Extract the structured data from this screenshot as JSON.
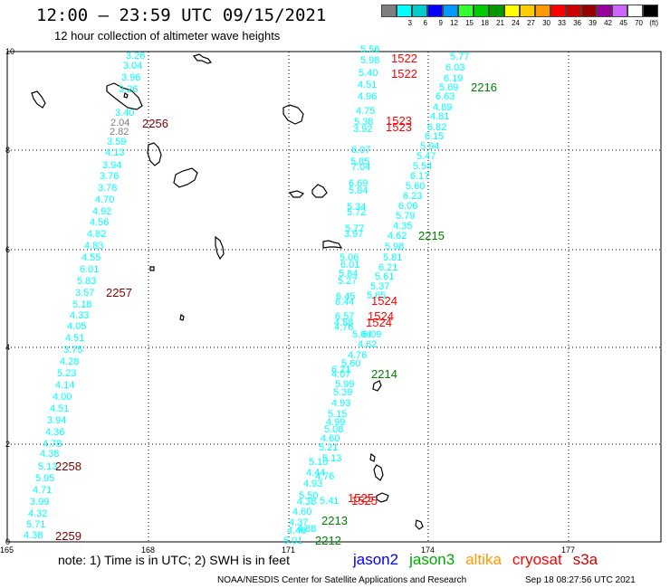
{
  "header": {
    "title": "12:00 – 23:59 UTC 09/15/2021",
    "subtitle": "12 hour collection of altimeter wave heights"
  },
  "legend": {
    "unit": "(ft)",
    "colors": [
      "#7f7f7f",
      "#00ffff",
      "#00cccc",
      "#0000ff",
      "#0099ff",
      "#33ff33",
      "#00cc00",
      "#009900",
      "#ffff00",
      "#ffcc00",
      "#ff9900",
      "#ff0000",
      "#cc0000",
      "#990000",
      "#990099",
      "#cc66ff",
      "#ffffff",
      "#000000"
    ],
    "labels": [
      "",
      "3",
      "6",
      "9",
      "12",
      "15",
      "18",
      "21",
      "24",
      "27",
      "30",
      "33",
      "36",
      "39",
      "42",
      "45",
      "70",
      ""
    ]
  },
  "axes": {
    "y_ticks": [
      "0",
      "2",
      "4",
      "6",
      "8",
      "10"
    ],
    "x_ticks": [
      "165",
      "168",
      "171",
      "174",
      "177"
    ]
  },
  "observations": [
    {
      "t": "3.26",
      "c": "#00ffff"
    },
    {
      "t": "3.04",
      "c": "#00ffff"
    },
    {
      "t": "3.96",
      "c": "#00ffff"
    },
    {
      "t": "3.26",
      "c": "#00ffff"
    },
    {
      "t": "2.04",
      "c": "#7f7f7f"
    },
    {
      "t": "2.82",
      "c": "#7f7f7f"
    },
    {
      "t": "3.40",
      "c": "#00ffff"
    },
    {
      "t": "3.59",
      "c": "#00ffff"
    },
    {
      "t": "4.13",
      "c": "#00ffff"
    },
    {
      "t": "3.94",
      "c": "#00ffff"
    },
    {
      "t": "3.76",
      "c": "#00ffff"
    },
    {
      "t": "3.78",
      "c": "#00ffff"
    },
    {
      "t": "4.70",
      "c": "#00ffff"
    },
    {
      "t": "4.92",
      "c": "#00ffff"
    },
    {
      "t": "4.56",
      "c": "#00ffff"
    },
    {
      "t": "4.82",
      "c": "#00ffff"
    },
    {
      "t": "4.83",
      "c": "#00ffff"
    },
    {
      "t": "4.55",
      "c": "#00ffff"
    },
    {
      "t": "6.01",
      "c": "#00ffff"
    },
    {
      "t": "5.83",
      "c": "#00ffff"
    },
    {
      "t": "3.57",
      "c": "#00ffff"
    },
    {
      "t": "5.18",
      "c": "#00ffff"
    },
    {
      "t": "4.33",
      "c": "#00ffff"
    },
    {
      "t": "4.05",
      "c": "#00ffff"
    },
    {
      "t": "4.51",
      "c": "#00ffff"
    },
    {
      "t": "3.75",
      "c": "#00ffff"
    },
    {
      "t": "4.28",
      "c": "#00ffff"
    },
    {
      "t": "5.23",
      "c": "#00ffff"
    },
    {
      "t": "4.14",
      "c": "#00ffff"
    },
    {
      "t": "4.00",
      "c": "#00ffff"
    },
    {
      "t": "4.51",
      "c": "#00ffff"
    },
    {
      "t": "3.94",
      "c": "#00ffff"
    },
    {
      "t": "4.36",
      "c": "#00ffff"
    },
    {
      "t": "4.78",
      "c": "#00ffff"
    },
    {
      "t": "4.38",
      "c": "#00ffff"
    },
    {
      "t": "5.13",
      "c": "#00ffff"
    },
    {
      "t": "5.95",
      "c": "#00ffff"
    },
    {
      "t": "4.71",
      "c": "#00ffff"
    },
    {
      "t": "3.99",
      "c": "#00ffff"
    },
    {
      "t": "4.32",
      "c": "#00ffff"
    },
    {
      "t": "5.71",
      "c": "#00ffff"
    },
    {
      "t": "4.38",
      "c": "#00ffff"
    },
    {
      "t": "5.56",
      "c": "#00ffff"
    },
    {
      "t": "5.98",
      "c": "#00ffff"
    },
    {
      "t": "5.40",
      "c": "#00ffff"
    },
    {
      "t": "4.51",
      "c": "#00ffff"
    },
    {
      "t": "4.96",
      "c": "#00ffff"
    },
    {
      "t": "4.75",
      "c": "#00ffff"
    },
    {
      "t": "5.38",
      "c": "#00ffff"
    },
    {
      "t": "3.92",
      "c": "#00ffff"
    },
    {
      "t": "6.07",
      "c": "#00ffff"
    },
    {
      "t": "5.85",
      "c": "#00ffff"
    },
    {
      "t": "7.04",
      "c": "#00ffff"
    },
    {
      "t": "6.69",
      "c": "#00ffff"
    },
    {
      "t": "5.84",
      "c": "#00ffff"
    },
    {
      "t": "5.34",
      "c": "#00ffff"
    },
    {
      "t": "5.72",
      "c": "#00ffff"
    },
    {
      "t": "5.77",
      "c": "#00ffff"
    },
    {
      "t": "3.97",
      "c": "#00ffff"
    },
    {
      "t": "5.06",
      "c": "#00ffff"
    },
    {
      "t": "6.01",
      "c": "#00ffff"
    },
    {
      "t": "5.84",
      "c": "#00ffff"
    },
    {
      "t": "5.27",
      "c": "#00ffff"
    },
    {
      "t": "6.45",
      "c": "#00ffff"
    },
    {
      "t": "6.44",
      "c": "#00ffff"
    },
    {
      "t": "6.57",
      "c": "#00ffff"
    },
    {
      "t": "4.58",
      "c": "#00ffff"
    },
    {
      "t": "4.76",
      "c": "#00ffff"
    },
    {
      "t": "5.77",
      "c": "#00ffff"
    },
    {
      "t": "6.03",
      "c": "#00ffff"
    },
    {
      "t": "6.19",
      "c": "#00ffff"
    },
    {
      "t": "5.69",
      "c": "#00ffff"
    },
    {
      "t": "6.63",
      "c": "#00ffff"
    },
    {
      "t": "4.89",
      "c": "#00ffff"
    },
    {
      "t": "4.81",
      "c": "#00ffff"
    },
    {
      "t": "6.82",
      "c": "#00ffff"
    },
    {
      "t": "6.15",
      "c": "#00ffff"
    },
    {
      "t": "5.94",
      "c": "#00ffff"
    },
    {
      "t": "5.47",
      "c": "#00ffff"
    },
    {
      "t": "5.54",
      "c": "#00ffff"
    },
    {
      "t": "6.17",
      "c": "#00ffff"
    },
    {
      "t": "5.60",
      "c": "#00ffff"
    },
    {
      "t": "6.23",
      "c": "#00ffff"
    },
    {
      "t": "6.06",
      "c": "#00ffff"
    },
    {
      "t": "5.79",
      "c": "#00ffff"
    },
    {
      "t": "4.35",
      "c": "#00ffff"
    },
    {
      "t": "4.62",
      "c": "#00ffff"
    },
    {
      "t": "5.98",
      "c": "#00ffff"
    },
    {
      "t": "5.81",
      "c": "#00ffff"
    },
    {
      "t": "6.21",
      "c": "#00ffff"
    },
    {
      "t": "5.61",
      "c": "#00ffff"
    },
    {
      "t": "5.37",
      "c": "#00ffff"
    },
    {
      "t": "5.65",
      "c": "#00ffff"
    },
    {
      "t": "6.09",
      "c": "#00ffff"
    },
    {
      "t": "4.62",
      "c": "#00ffff"
    },
    {
      "t": "5.64",
      "c": "#00ffff"
    },
    {
      "t": "4.76",
      "c": "#00ffff"
    },
    {
      "t": "5.60",
      "c": "#00ffff"
    },
    {
      "t": "6.21",
      "c": "#00ffff"
    },
    {
      "t": "4.07",
      "c": "#00ffff"
    },
    {
      "t": "5.99",
      "c": "#00ffff"
    },
    {
      "t": "5.39",
      "c": "#00ffff"
    },
    {
      "t": "4.93",
      "c": "#00ffff"
    },
    {
      "t": "5.15",
      "c": "#00ffff"
    },
    {
      "t": "4.99",
      "c": "#00ffff"
    },
    {
      "t": "5.08",
      "c": "#00ffff"
    },
    {
      "t": "4.60",
      "c": "#00ffff"
    },
    {
      "t": "5.21",
      "c": "#00ffff"
    },
    {
      "t": "5.13",
      "c": "#00ffff"
    },
    {
      "t": "5.10",
      "c": "#00ffff"
    },
    {
      "t": "4.44",
      "c": "#00ffff"
    },
    {
      "t": "4.76",
      "c": "#00ffff"
    },
    {
      "t": "4.93",
      "c": "#00ffff"
    },
    {
      "t": "5.50",
      "c": "#00ffff"
    },
    {
      "t": "4.38",
      "c": "#00ffff"
    },
    {
      "t": "5.41",
      "c": "#00ffff"
    },
    {
      "t": "4.60",
      "c": "#00ffff"
    },
    {
      "t": "4.37",
      "c": "#00ffff"
    },
    {
      "t": "4.48",
      "c": "#00ffff"
    },
    {
      "t": "4.88",
      "c": "#00ffff"
    },
    {
      "t": "5.01",
      "c": "#00ffff"
    }
  ],
  "passes": [
    {
      "t": "2256",
      "c": "#800000"
    },
    {
      "t": "2257",
      "c": "#800000"
    },
    {
      "t": "2258",
      "c": "#800000"
    },
    {
      "t": "2259",
      "c": "#800000"
    },
    {
      "t": "1522",
      "c": "#ff0000"
    },
    {
      "t": "1522",
      "c": "#ff0000"
    },
    {
      "t": "1523",
      "c": "#ff0000"
    },
    {
      "t": "1523",
      "c": "#ff0000"
    },
    {
      "t": "1524",
      "c": "#ff0000"
    },
    {
      "t": "1524",
      "c": "#ff0000"
    },
    {
      "t": "1524",
      "c": "#ff0000"
    },
    {
      "t": "1525",
      "c": "#ff0000"
    },
    {
      "t": "1525",
      "c": "#ff0000"
    },
    {
      "t": "2216",
      "c": "#008000"
    },
    {
      "t": "2215",
      "c": "#008000"
    },
    {
      "t": "2214",
      "c": "#008000"
    },
    {
      "t": "2213",
      "c": "#008000"
    },
    {
      "t": "2212",
      "c": "#008000"
    }
  ],
  "notes": {
    "text": "note: 1) Time is in UTC; 2) SWH is in feet",
    "satellites": [
      {
        "name": "jason2",
        "color": "#0000ff"
      },
      {
        "name": "jason3",
        "color": "#00aa00"
      },
      {
        "name": "altika",
        "color": "#ff9900"
      },
      {
        "name": "cryosat",
        "color": "#ff0000"
      },
      {
        "name": "s3a",
        "color": "#cc0000"
      }
    ]
  },
  "footer": {
    "source": "NOAA/NESDIS Center for Satellite Applications and Research",
    "date": "Sep 18 08:27:56 UTC 2021"
  }
}
